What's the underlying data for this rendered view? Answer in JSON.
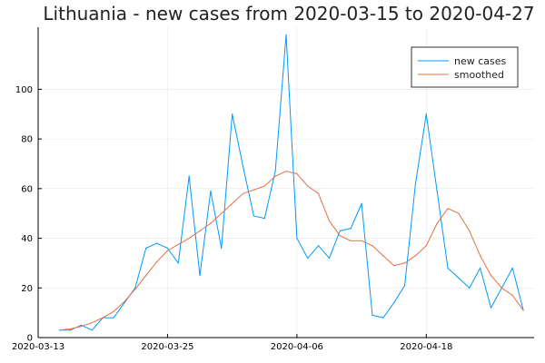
{
  "chart_data": {
    "type": "line",
    "title": "Lithuania - new cases from 2020-03-15 to 2020-04-27",
    "xlabel": "",
    "ylabel": "",
    "x_start": "2020-03-15",
    "x": [
      "2020-03-15",
      "2020-03-16",
      "2020-03-17",
      "2020-03-18",
      "2020-03-19",
      "2020-03-20",
      "2020-03-21",
      "2020-03-22",
      "2020-03-23",
      "2020-03-24",
      "2020-03-25",
      "2020-03-26",
      "2020-03-27",
      "2020-03-28",
      "2020-03-29",
      "2020-03-30",
      "2020-03-31",
      "2020-04-01",
      "2020-04-02",
      "2020-04-03",
      "2020-04-04",
      "2020-04-05",
      "2020-04-06",
      "2020-04-07",
      "2020-04-08",
      "2020-04-09",
      "2020-04-10",
      "2020-04-11",
      "2020-04-12",
      "2020-04-13",
      "2020-04-14",
      "2020-04-15",
      "2020-04-16",
      "2020-04-17",
      "2020-04-18",
      "2020-04-19",
      "2020-04-20",
      "2020-04-21",
      "2020-04-22",
      "2020-04-23",
      "2020-04-24",
      "2020-04-25",
      "2020-04-26",
      "2020-04-27"
    ],
    "xlim": [
      "2020-03-13",
      "2020-04-28"
    ],
    "x_ticks": [
      "2020-03-13",
      "2020-03-25",
      "2020-04-06",
      "2020-04-18"
    ],
    "ylim": [
      0,
      125
    ],
    "y_ticks": [
      0,
      20,
      40,
      60,
      80,
      100
    ],
    "grid": true,
    "legend_position": "top-right",
    "series": [
      {
        "name": "new cases",
        "color": "#009af9",
        "values": [
          3,
          3,
          5,
          3,
          8,
          8,
          14,
          20,
          36,
          38,
          36,
          30,
          65,
          25,
          59,
          36,
          90,
          69,
          49,
          48,
          67,
          122,
          40,
          32,
          37,
          32,
          43,
          44,
          54,
          9,
          8,
          14,
          21,
          62,
          90,
          59,
          28,
          24,
          20,
          28,
          12,
          20,
          28,
          11
        ]
      },
      {
        "name": "smoothed",
        "color": "#e26f46",
        "values": [
          3,
          3.5,
          4.5,
          6,
          8,
          10.5,
          14.5,
          19.5,
          25,
          30.5,
          35,
          37.5,
          40,
          43,
          46,
          50,
          54,
          58,
          59.5,
          61,
          65,
          67,
          66,
          61,
          58,
          47,
          41,
          39,
          39,
          37,
          33,
          29,
          30,
          33,
          37,
          46,
          52,
          50,
          43,
          33,
          25,
          20,
          17,
          11
        ]
      }
    ]
  }
}
